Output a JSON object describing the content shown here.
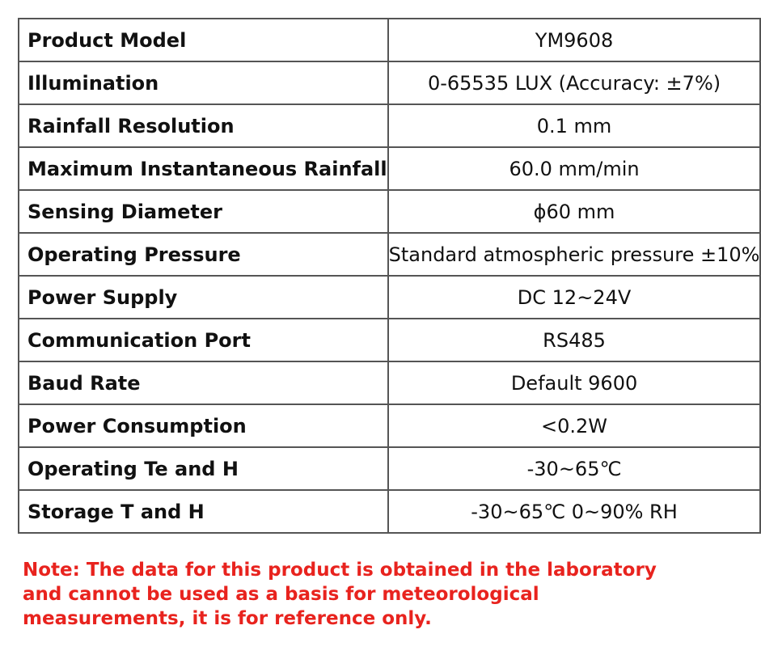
{
  "table": {
    "rows": [
      [
        "Product Model",
        "YM9608"
      ],
      [
        "Illumination",
        "0-65535 LUX (Accuracy: ±7%)"
      ],
      [
        "Rainfall Resolution",
        "0.1 mm"
      ],
      [
        "Maximum Instantaneous Rainfall",
        "60.0 mm/min"
      ],
      [
        "Sensing Diameter",
        "ϕ60 mm"
      ],
      [
        "Operating Pressure",
        "Standard atmospheric pressure ±10%"
      ],
      [
        "Power Supply",
        "DC 12~24V"
      ],
      [
        "Communication Port",
        "RS485"
      ],
      [
        "Baud Rate",
        "Default 9600"
      ],
      [
        "Power Consumption",
        "<0.2W"
      ],
      [
        "Operating Te and H",
        "-30~65℃"
      ],
      [
        "Storage T and H",
        "-30~65℃ 0~90% RH"
      ]
    ]
  },
  "note": "Note: The data for this product is obtained in the laboratory and cannot be used as a basis for meteorological measurements, it is for reference only."
}
